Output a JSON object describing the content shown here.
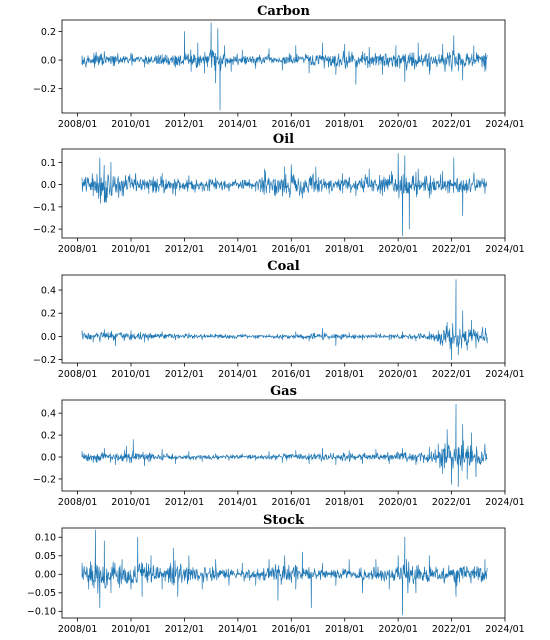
{
  "colors": {
    "series": "#1f77b4"
  },
  "chart_data": [
    {
      "type": "line",
      "title": "Carbon",
      "xlim": [
        "2007/06",
        "2024/01"
      ],
      "ylim": [
        -0.37,
        0.28
      ],
      "x_ticks": [
        "2008/01",
        "2010/01",
        "2012/01",
        "2014/01",
        "2016/01",
        "2018/01",
        "2020/01",
        "2022/01",
        "2024/01"
      ],
      "y_ticks": [
        -0.2,
        0.0,
        0.2
      ],
      "y_tick_labels": [
        "−0.2",
        "0.0",
        "0.2"
      ],
      "series": [
        {
          "x": [
            "2008/03",
            "2008/08",
            "2009/01",
            "2009/05",
            "2010/01",
            "2010/07",
            "2011/03",
            "2011/09",
            "2012/01",
            "2012/04",
            "2012/07",
            "2012/10",
            "2013/01",
            "2013/03",
            "2013/04",
            "2013/05",
            "2013/07",
            "2013/10",
            "2014/03",
            "2014/09",
            "2015/03",
            "2015/09",
            "2016/03",
            "2016/09",
            "2017/03",
            "2017/09",
            "2018/01",
            "2018/06",
            "2018/12",
            "2019/06",
            "2019/12",
            "2020/04",
            "2020/10",
            "2021/03",
            "2021/09",
            "2022/02",
            "2022/06",
            "2022/11",
            "2023/04"
          ],
          "y": [
            0.03,
            -0.02,
            0.06,
            -0.04,
            0.05,
            -0.05,
            0.04,
            -0.05,
            0.2,
            -0.08,
            0.12,
            -0.09,
            0.26,
            -0.16,
            0.22,
            -0.35,
            0.1,
            -0.08,
            0.07,
            -0.06,
            0.08,
            -0.07,
            0.1,
            -0.09,
            0.12,
            -0.1,
            0.11,
            -0.17,
            0.09,
            -0.1,
            0.1,
            -0.15,
            0.12,
            -0.1,
            0.11,
            0.17,
            -0.14,
            0.1,
            -0.08
          ],
          "amplitude": [
            0.02,
            0.025,
            0.028,
            0.02,
            0.022,
            0.022,
            0.024,
            0.026,
            0.03,
            0.04,
            0.035,
            0.03,
            0.05,
            0.06,
            0.05,
            0.04,
            0.03,
            0.025,
            0.022,
            0.02,
            0.02,
            0.022,
            0.026,
            0.028,
            0.03,
            0.03,
            0.035,
            0.033,
            0.03,
            0.03,
            0.032,
            0.04,
            0.038,
            0.035,
            0.035,
            0.045,
            0.04,
            0.035,
            0.03
          ]
        }
      ]
    },
    {
      "type": "line",
      "title": "Oil",
      "xlim": [
        "2007/06",
        "2024/01"
      ],
      "ylim": [
        -0.24,
        0.16
      ],
      "x_ticks": [
        "2008/01",
        "2010/01",
        "2012/01",
        "2014/01",
        "2016/01",
        "2018/01",
        "2020/01",
        "2022/01",
        "2024/01"
      ],
      "y_ticks": [
        -0.2,
        -0.1,
        0.0,
        0.1
      ],
      "y_tick_labels": [
        "−0.2",
        "−0.1",
        "0.0",
        "0.1"
      ],
      "series": [
        {
          "x": [
            "2008/03",
            "2008/08",
            "2008/11",
            "2009/01",
            "2009/04",
            "2009/09",
            "2010/03",
            "2010/09",
            "2011/03",
            "2011/09",
            "2012/03",
            "2012/09",
            "2013/03",
            "2013/09",
            "2014/03",
            "2014/09",
            "2015/01",
            "2015/06",
            "2015/10",
            "2016/01",
            "2016/06",
            "2016/12",
            "2017/06",
            "2017/12",
            "2018/06",
            "2018/12",
            "2019/06",
            "2019/10",
            "2020/01",
            "2020/03",
            "2020/04",
            "2020/06",
            "2020/10",
            "2021/03",
            "2021/09",
            "2022/02",
            "2022/06",
            "2022/11",
            "2023/04"
          ],
          "y": [
            0.03,
            -0.05,
            0.12,
            -0.08,
            0.1,
            -0.05,
            0.05,
            -0.04,
            0.05,
            -0.05,
            0.04,
            -0.03,
            0.03,
            -0.03,
            0.02,
            -0.03,
            0.07,
            -0.05,
            0.08,
            0.09,
            -0.06,
            0.08,
            -0.04,
            0.05,
            -0.05,
            0.07,
            -0.05,
            0.06,
            0.14,
            -0.23,
            0.13,
            -0.2,
            0.07,
            -0.06,
            0.06,
            0.12,
            -0.14,
            0.05,
            -0.04
          ],
          "amplitude": [
            0.02,
            0.03,
            0.05,
            0.05,
            0.04,
            0.03,
            0.02,
            0.02,
            0.022,
            0.02,
            0.018,
            0.016,
            0.014,
            0.014,
            0.013,
            0.015,
            0.03,
            0.035,
            0.035,
            0.038,
            0.032,
            0.026,
            0.02,
            0.02,
            0.02,
            0.026,
            0.022,
            0.022,
            0.03,
            0.05,
            0.045,
            0.035,
            0.028,
            0.024,
            0.024,
            0.03,
            0.03,
            0.025,
            0.02
          ]
        }
      ]
    },
    {
      "type": "line",
      "title": "Coal",
      "xlim": [
        "2007/06",
        "2024/01"
      ],
      "ylim": [
        -0.23,
        0.53
      ],
      "x_ticks": [
        "2008/01",
        "2010/01",
        "2012/01",
        "2014/01",
        "2016/01",
        "2018/01",
        "2020/01",
        "2022/01",
        "2024/01"
      ],
      "y_ticks": [
        -0.2,
        0.0,
        0.2,
        0.4
      ],
      "y_tick_labels": [
        "−0.2",
        "0.0",
        "0.2",
        "0.4"
      ],
      "series": [
        {
          "x": [
            "2008/03",
            "2008/08",
            "2009/01",
            "2009/06",
            "2010/01",
            "2010/07",
            "2011/03",
            "2011/09",
            "2012/03",
            "2012/09",
            "2013/03",
            "2013/09",
            "2014/03",
            "2014/09",
            "2015/03",
            "2015/09",
            "2016/03",
            "2016/09",
            "2017/03",
            "2017/09",
            "2018/03",
            "2018/09",
            "2019/03",
            "2019/09",
            "2020/03",
            "2020/09",
            "2021/03",
            "2021/07",
            "2021/09",
            "2021/11",
            "2022/01",
            "2022/03",
            "2022/04",
            "2022/06",
            "2022/08",
            "2022/10",
            "2022/12",
            "2023/03",
            "2023/05"
          ],
          "y": [
            0.05,
            -0.05,
            0.06,
            -0.08,
            0.05,
            -0.05,
            0.04,
            -0.03,
            0.03,
            -0.03,
            0.02,
            -0.02,
            0.02,
            -0.02,
            0.02,
            -0.03,
            0.04,
            -0.04,
            0.07,
            -0.08,
            0.03,
            -0.03,
            0.03,
            -0.03,
            0.04,
            -0.04,
            0.04,
            0.05,
            -0.08,
            0.12,
            -0.2,
            0.49,
            -0.16,
            0.22,
            -0.12,
            0.14,
            -0.1,
            0.08,
            -0.06
          ],
          "amplitude": [
            0.02,
            0.025,
            0.03,
            0.025,
            0.02,
            0.018,
            0.016,
            0.014,
            0.012,
            0.01,
            0.01,
            0.01,
            0.009,
            0.009,
            0.01,
            0.012,
            0.014,
            0.016,
            0.018,
            0.016,
            0.012,
            0.012,
            0.012,
            0.012,
            0.015,
            0.015,
            0.016,
            0.03,
            0.05,
            0.06,
            0.08,
            0.08,
            0.07,
            0.06,
            0.055,
            0.05,
            0.045,
            0.04,
            0.035
          ]
        }
      ]
    },
    {
      "type": "line",
      "title": "Gas",
      "xlim": [
        "2007/06",
        "2024/01"
      ],
      "ylim": [
        -0.31,
        0.52
      ],
      "x_ticks": [
        "2008/01",
        "2010/01",
        "2012/01",
        "2014/01",
        "2016/01",
        "2018/01",
        "2020/01",
        "2022/01",
        "2024/01"
      ],
      "y_ticks": [
        -0.2,
        0.0,
        0.2,
        0.4
      ],
      "y_tick_labels": [
        "−0.2",
        "0.0",
        "0.2",
        "0.4"
      ],
      "series": [
        {
          "x": [
            "2008/03",
            "2008/08",
            "2009/01",
            "2009/06",
            "2009/11",
            "2010/02",
            "2010/07",
            "2011/03",
            "2011/09",
            "2012/03",
            "2012/09",
            "2013/03",
            "2013/09",
            "2014/03",
            "2014/09",
            "2015/03",
            "2015/09",
            "2016/03",
            "2016/09",
            "2017/03",
            "2017/09",
            "2018/03",
            "2018/09",
            "2019/03",
            "2019/09",
            "2020/03",
            "2020/09",
            "2021/03",
            "2021/07",
            "2021/09",
            "2021/11",
            "2022/01",
            "2022/03",
            "2022/04",
            "2022/06",
            "2022/08",
            "2022/10",
            "2022/12",
            "2023/04"
          ],
          "y": [
            0.05,
            -0.05,
            0.08,
            -0.07,
            0.1,
            0.16,
            -0.08,
            0.07,
            -0.06,
            0.05,
            -0.04,
            0.03,
            -0.03,
            0.03,
            -0.03,
            0.05,
            -0.05,
            0.06,
            -0.06,
            0.08,
            -0.07,
            0.06,
            -0.06,
            0.07,
            -0.06,
            0.08,
            -0.07,
            0.09,
            0.12,
            -0.15,
            0.25,
            -0.25,
            0.48,
            -0.27,
            0.3,
            -0.2,
            0.22,
            -0.18,
            0.12
          ],
          "amplitude": [
            0.02,
            0.025,
            0.03,
            0.03,
            0.03,
            0.035,
            0.025,
            0.02,
            0.018,
            0.016,
            0.013,
            0.012,
            0.012,
            0.011,
            0.012,
            0.015,
            0.016,
            0.018,
            0.018,
            0.02,
            0.02,
            0.02,
            0.02,
            0.022,
            0.022,
            0.025,
            0.026,
            0.03,
            0.04,
            0.06,
            0.07,
            0.08,
            0.09,
            0.08,
            0.07,
            0.065,
            0.06,
            0.055,
            0.05
          ]
        }
      ]
    },
    {
      "type": "line",
      "title": "Stock",
      "xlim": [
        "2007/06",
        "2024/01"
      ],
      "ylim": [
        -0.118,
        0.125
      ],
      "x_ticks": [
        "2008/01",
        "2010/01",
        "2012/01",
        "2014/01",
        "2016/01",
        "2018/01",
        "2020/01",
        "2022/01",
        "2024/01"
      ],
      "y_ticks": [
        -0.1,
        -0.05,
        0.0,
        0.05,
        0.1
      ],
      "y_tick_labels": [
        "−0.10",
        "−0.05",
        "0.00",
        "0.05",
        "0.10"
      ],
      "series": [
        {
          "x": [
            "2008/03",
            "2008/06",
            "2008/09",
            "2008/11",
            "2009/01",
            "2009/04",
            "2009/09",
            "2010/01",
            "2010/04",
            "2010/06",
            "2010/10",
            "2011/03",
            "2011/08",
            "2011/10",
            "2012/03",
            "2012/09",
            "2013/03",
            "2013/09",
            "2014/03",
            "2014/09",
            "2015/03",
            "2015/07",
            "2015/10",
            "2016/03",
            "2016/06",
            "2016/10",
            "2017/03",
            "2017/09",
            "2018/03",
            "2018/09",
            "2019/03",
            "2019/09",
            "2020/01",
            "2020/03",
            "2020/04",
            "2020/09",
            "2021/03",
            "2022/03",
            "2023/04"
          ],
          "y": [
            0.03,
            -0.04,
            0.12,
            -0.09,
            0.09,
            -0.05,
            0.04,
            -0.04,
            0.1,
            -0.06,
            0.05,
            -0.04,
            0.07,
            -0.06,
            0.05,
            -0.04,
            0.04,
            -0.03,
            0.03,
            -0.03,
            0.04,
            -0.07,
            0.05,
            -0.04,
            0.06,
            -0.09,
            0.03,
            -0.03,
            0.04,
            -0.05,
            0.04,
            -0.04,
            0.05,
            -0.11,
            0.1,
            -0.05,
            0.05,
            -0.06,
            0.04
          ],
          "amplitude": [
            0.012,
            0.015,
            0.03,
            0.035,
            0.03,
            0.025,
            0.018,
            0.016,
            0.02,
            0.018,
            0.015,
            0.013,
            0.018,
            0.018,
            0.013,
            0.011,
            0.01,
            0.009,
            0.009,
            0.009,
            0.011,
            0.016,
            0.014,
            0.013,
            0.013,
            0.011,
            0.008,
            0.008,
            0.01,
            0.011,
            0.01,
            0.01,
            0.012,
            0.03,
            0.028,
            0.015,
            0.012,
            0.016,
            0.012
          ]
        }
      ]
    }
  ]
}
